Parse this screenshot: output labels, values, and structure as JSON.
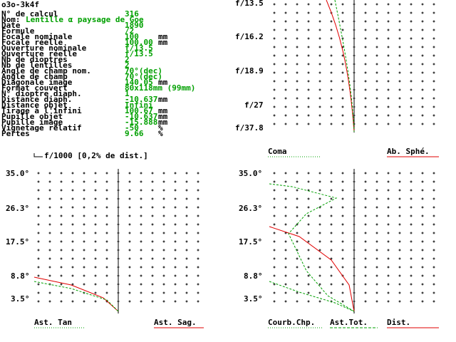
{
  "header": {
    "title": "o3o-3k4f"
  },
  "specs": {
    "rows": [
      {
        "label": "N° de calcul",
        "value": "316"
      },
      {
        "label": "Nom:",
        "value": "Lentille α paysage de Goe"
      },
      {
        "label": "Date",
        "value": "1890"
      },
      {
        "label": "Formule",
        "value": "/2"
      },
      {
        "label": "Focale nominale",
        "value": "100",
        "unit": "mm"
      },
      {
        "label": "Focale réelle",
        "value": "100.00",
        "unit": "mm"
      },
      {
        "label": "Ouverture nominale",
        "value": "f/13.5"
      },
      {
        "label": "Ouverture réelle",
        "value": "f/13.5"
      },
      {
        "label": "Nb de dioptres",
        "value": "2"
      },
      {
        "label": "Nb de lentilles",
        "value": "2"
      },
      {
        "label": "Angle de champ nom.",
        "value": "70°(dec)"
      },
      {
        "label": "Angle de champ",
        "value": "70°(dec)"
      },
      {
        "label": "Diagonale image",
        "value": "140.05",
        "unit": "mm"
      },
      {
        "label": "Format couvert",
        "value": "80x118mm (99mm)"
      },
      {
        "label": "N° dioptre diaph.",
        "value": "1"
      },
      {
        "label": "Distance diaph.",
        "value": "-10.637",
        "unit": "mm"
      },
      {
        "label": "Distance objet",
        "value": "Infini"
      },
      {
        "label": "Tirage à l'infini",
        "value": "100.67",
        "unit": "mm"
      },
      {
        "label": "Pupille objet",
        "value": "-10.637",
        "unit": "mm"
      },
      {
        "label": "Pupille image",
        "value": "-15.888",
        "unit": "mm"
      },
      {
        "label": "Vignetage relatif",
        "value": "-50",
        "unit": "%"
      },
      {
        "label": "Pertes",
        "value": "9.66",
        "unit": "%"
      }
    ]
  },
  "plots": [
    {
      "ticks": [
        "f/13.5",
        "f/16.2",
        "f/18.9",
        "f/27",
        "f/37.8"
      ],
      "legend": [
        "Coma",
        "Ab. Sphé."
      ]
    },
    {
      "caption": "f/1000 [0,2% de dist.]",
      "ticks": [
        "35.0°",
        "26.3°",
        "17.5°",
        "8.8°",
        "3.5°"
      ],
      "legend": [
        "Ast. Tan",
        "Ast. Sag."
      ]
    },
    {
      "ticks": [
        "35.0°",
        "26.3°",
        "17.5°",
        "8.8°",
        "3.5°"
      ],
      "legend": [
        "Courb.Chp.",
        "Ast.Tot.",
        "Dist."
      ]
    }
  ]
}
